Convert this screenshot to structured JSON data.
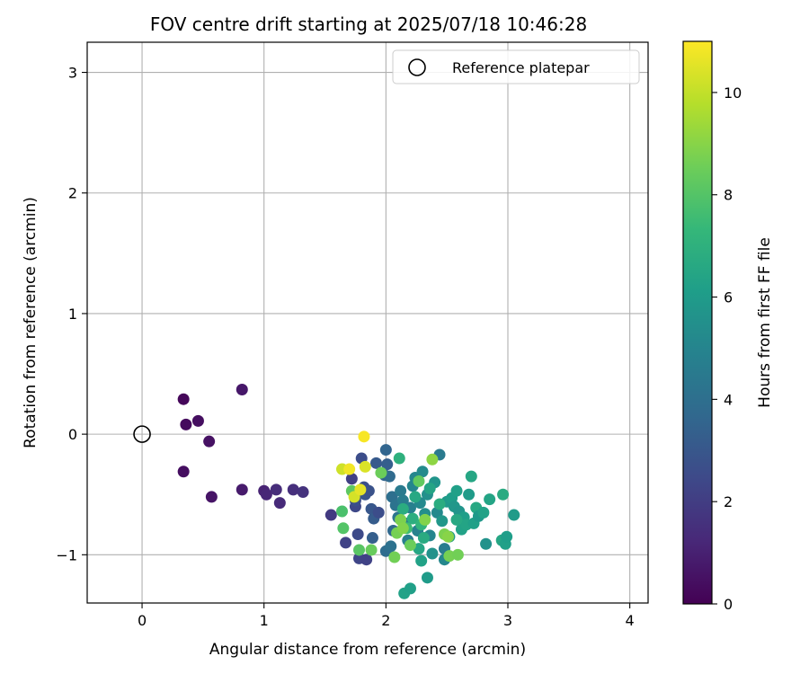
{
  "chart_data": {
    "type": "scatter",
    "title": "FOV centre drift starting at 2025/07/18 10:46:28",
    "xlabel": "Angular distance from reference (arcmin)",
    "ylabel": "Rotation from reference (arcmin)",
    "xlim": [
      -0.45,
      4.15
    ],
    "ylim": [
      -1.4,
      3.25
    ],
    "x_ticks": [
      0,
      1,
      2,
      3,
      4
    ],
    "y_ticks": [
      -1,
      0,
      1,
      2,
      3
    ],
    "x_tick_labels": [
      "0",
      "1",
      "2",
      "3",
      "4"
    ],
    "y_tick_labels": [
      "−1",
      "0",
      "1",
      "2",
      "3"
    ],
    "grid": true,
    "legend": {
      "placement": "top-right",
      "entries": [
        {
          "label": "Reference platepar",
          "marker": "open-circle"
        }
      ]
    },
    "reference_point": {
      "x": 0,
      "y": 0
    },
    "colorbar": {
      "label": "Hours from first FF file",
      "colormap": "viridis",
      "range": [
        0,
        11
      ],
      "ticks": [
        0,
        2,
        4,
        6,
        8,
        10
      ],
      "tick_labels": [
        "0",
        "2",
        "4",
        "6",
        "8",
        "10"
      ]
    },
    "points": [
      {
        "x": 0.34,
        "y": 0.29,
        "c": 0.2
      },
      {
        "x": 0.36,
        "y": 0.08,
        "c": 0.3
      },
      {
        "x": 0.46,
        "y": 0.11,
        "c": 0.4
      },
      {
        "x": 0.55,
        "y": -0.06,
        "c": 0.5
      },
      {
        "x": 0.34,
        "y": -0.31,
        "c": 0.4
      },
      {
        "x": 0.57,
        "y": -0.52,
        "c": 0.6
      },
      {
        "x": 0.82,
        "y": 0.37,
        "c": 0.7
      },
      {
        "x": 0.82,
        "y": -0.46,
        "c": 0.8
      },
      {
        "x": 1.0,
        "y": -0.47,
        "c": 1.1
      },
      {
        "x": 1.02,
        "y": -0.5,
        "c": 1.2
      },
      {
        "x": 1.1,
        "y": -0.46,
        "c": 1.4
      },
      {
        "x": 1.13,
        "y": -0.57,
        "c": 1.3
      },
      {
        "x": 1.24,
        "y": -0.46,
        "c": 1.5
      },
      {
        "x": 1.32,
        "y": -0.48,
        "c": 1.6
      },
      {
        "x": 1.55,
        "y": -0.67,
        "c": 1.9
      },
      {
        "x": 1.67,
        "y": -0.9,
        "c": 2.2
      },
      {
        "x": 1.72,
        "y": -0.37,
        "c": 2.1
      },
      {
        "x": 1.75,
        "y": -0.6,
        "c": 2.4
      },
      {
        "x": 1.77,
        "y": -0.83,
        "c": 2.5
      },
      {
        "x": 1.78,
        "y": -1.03,
        "c": 2.3
      },
      {
        "x": 1.8,
        "y": -0.2,
        "c": 2.6
      },
      {
        "x": 1.82,
        "y": -0.44,
        "c": 2.7
      },
      {
        "x": 1.83,
        "y": -0.5,
        "c": 2.9
      },
      {
        "x": 1.84,
        "y": -1.04,
        "c": 2.2
      },
      {
        "x": 1.86,
        "y": -0.47,
        "c": 2.8
      },
      {
        "x": 1.88,
        "y": -0.62,
        "c": 3.0
      },
      {
        "x": 1.9,
        "y": -0.7,
        "c": 3.2
      },
      {
        "x": 1.92,
        "y": -0.24,
        "c": 3.1
      },
      {
        "x": 1.94,
        "y": -0.65,
        "c": 2.6
      },
      {
        "x": 1.89,
        "y": -0.86,
        "c": 3.3
      },
      {
        "x": 1.75,
        "y": -0.55,
        "c": 2.7
      },
      {
        "x": 1.99,
        "y": -0.34,
        "c": 3.5
      },
      {
        "x": 2.0,
        "y": -0.13,
        "c": 3.6
      },
      {
        "x": 2.01,
        "y": -0.25,
        "c": 3.3
      },
      {
        "x": 2.03,
        "y": -0.35,
        "c": 3.8
      },
      {
        "x": 2.05,
        "y": -0.52,
        "c": 4.0
      },
      {
        "x": 2.06,
        "y": -0.8,
        "c": 3.7
      },
      {
        "x": 2.0,
        "y": -0.97,
        "c": 3.9
      },
      {
        "x": 2.04,
        "y": -0.93,
        "c": 4.1
      },
      {
        "x": 2.08,
        "y": -0.59,
        "c": 4.2
      },
      {
        "x": 2.1,
        "y": -0.69,
        "c": 4.3
      },
      {
        "x": 2.12,
        "y": -0.47,
        "c": 4.5
      },
      {
        "x": 2.14,
        "y": -0.55,
        "c": 4.6
      },
      {
        "x": 2.16,
        "y": -0.74,
        "c": 4.4
      },
      {
        "x": 2.18,
        "y": -0.88,
        "c": 4.7
      },
      {
        "x": 2.2,
        "y": -0.61,
        "c": 4.8
      },
      {
        "x": 2.22,
        "y": -0.43,
        "c": 5.0
      },
      {
        "x": 2.24,
        "y": -0.36,
        "c": 5.1
      },
      {
        "x": 2.26,
        "y": -0.8,
        "c": 4.9
      },
      {
        "x": 2.28,
        "y": -0.57,
        "c": 5.2
      },
      {
        "x": 2.3,
        "y": -0.31,
        "c": 5.3
      },
      {
        "x": 2.32,
        "y": -0.66,
        "c": 5.4
      },
      {
        "x": 2.34,
        "y": -0.5,
        "c": 5.5
      },
      {
        "x": 2.36,
        "y": -0.84,
        "c": 5.0
      },
      {
        "x": 2.38,
        "y": -0.99,
        "c": 5.6
      },
      {
        "x": 2.4,
        "y": -0.4,
        "c": 5.7
      },
      {
        "x": 2.42,
        "y": -0.65,
        "c": 5.2
      },
      {
        "x": 2.44,
        "y": -0.17,
        "c": 4.5
      },
      {
        "x": 2.46,
        "y": -0.72,
        "c": 5.8
      },
      {
        "x": 2.48,
        "y": -0.95,
        "c": 4.6
      },
      {
        "x": 2.48,
        "y": -1.04,
        "c": 5.1
      },
      {
        "x": 2.5,
        "y": -0.56,
        "c": 5.9
      },
      {
        "x": 2.52,
        "y": -0.85,
        "c": 6.0
      },
      {
        "x": 2.54,
        "y": -0.53,
        "c": 6.1
      },
      {
        "x": 2.56,
        "y": -0.6,
        "c": 5.8
      },
      {
        "x": 2.58,
        "y": -0.47,
        "c": 6.2
      },
      {
        "x": 2.6,
        "y": -0.64,
        "c": 5.7
      },
      {
        "x": 2.62,
        "y": -0.79,
        "c": 6.3
      },
      {
        "x": 2.64,
        "y": -0.69,
        "c": 6.1
      },
      {
        "x": 2.66,
        "y": -0.75,
        "c": 6.4
      },
      {
        "x": 2.68,
        "y": -0.5,
        "c": 6.0
      },
      {
        "x": 2.7,
        "y": -0.35,
        "c": 6.5
      },
      {
        "x": 2.72,
        "y": -0.74,
        "c": 6.2
      },
      {
        "x": 2.74,
        "y": -0.61,
        "c": 6.6
      },
      {
        "x": 2.76,
        "y": -0.68,
        "c": 5.9
      },
      {
        "x": 2.8,
        "y": -0.65,
        "c": 6.3
      },
      {
        "x": 2.82,
        "y": -0.91,
        "c": 5.6
      },
      {
        "x": 2.85,
        "y": -0.54,
        "c": 6.4
      },
      {
        "x": 2.95,
        "y": -0.88,
        "c": 6.5
      },
      {
        "x": 2.96,
        "y": -0.5,
        "c": 6.7
      },
      {
        "x": 2.98,
        "y": -0.91,
        "c": 6.2
      },
      {
        "x": 2.99,
        "y": -0.85,
        "c": 6.1
      },
      {
        "x": 3.05,
        "y": -0.67,
        "c": 6.0
      },
      {
        "x": 2.29,
        "y": -1.05,
        "c": 6.3
      },
      {
        "x": 2.34,
        "y": -1.19,
        "c": 6.0
      },
      {
        "x": 2.15,
        "y": -1.32,
        "c": 6.3
      },
      {
        "x": 2.2,
        "y": -1.28,
        "c": 6.2
      },
      {
        "x": 2.27,
        "y": -0.95,
        "c": 6.5
      },
      {
        "x": 2.31,
        "y": -0.86,
        "c": 6.7
      },
      {
        "x": 2.22,
        "y": -0.7,
        "c": 6.9
      },
      {
        "x": 2.24,
        "y": -0.52,
        "c": 6.6
      },
      {
        "x": 2.14,
        "y": -0.62,
        "c": 6.8
      },
      {
        "x": 2.11,
        "y": -0.2,
        "c": 7.0
      },
      {
        "x": 2.36,
        "y": -0.45,
        "c": 6.4
      },
      {
        "x": 2.58,
        "y": -0.71,
        "c": 6.6
      },
      {
        "x": 2.44,
        "y": -0.58,
        "c": 6.8
      },
      {
        "x": 2.29,
        "y": -0.75,
        "c": 7.2
      },
      {
        "x": 2.17,
        "y": -0.78,
        "c": 7.5
      },
      {
        "x": 1.64,
        "y": -0.64,
        "c": 7.8
      },
      {
        "x": 1.65,
        "y": -0.78,
        "c": 8.0
      },
      {
        "x": 1.72,
        "y": -0.47,
        "c": 8.2
      },
      {
        "x": 1.78,
        "y": -0.96,
        "c": 8.1
      },
      {
        "x": 1.88,
        "y": -0.96,
        "c": 8.4
      },
      {
        "x": 1.96,
        "y": -0.32,
        "c": 8.5
      },
      {
        "x": 2.07,
        "y": -1.02,
        "c": 8.6
      },
      {
        "x": 2.09,
        "y": -0.82,
        "c": 8.7
      },
      {
        "x": 2.12,
        "y": -0.71,
        "c": 8.8
      },
      {
        "x": 2.14,
        "y": -0.78,
        "c": 8.9
      },
      {
        "x": 2.2,
        "y": -0.92,
        "c": 8.5
      },
      {
        "x": 2.27,
        "y": -0.39,
        "c": 8.3
      },
      {
        "x": 2.32,
        "y": -0.71,
        "c": 8.9
      },
      {
        "x": 2.38,
        "y": -0.21,
        "c": 9.1
      },
      {
        "x": 2.48,
        "y": -0.83,
        "c": 8.8
      },
      {
        "x": 2.51,
        "y": -0.85,
        "c": 9.0
      },
      {
        "x": 2.52,
        "y": -1.01,
        "c": 8.7
      },
      {
        "x": 2.59,
        "y": -1.0,
        "c": 8.6
      },
      {
        "x": 1.74,
        "y": -0.52,
        "c": 10.3
      },
      {
        "x": 1.79,
        "y": -0.46,
        "c": 10.6
      },
      {
        "x": 1.64,
        "y": -0.29,
        "c": 10.2
      },
      {
        "x": 1.7,
        "y": -0.29,
        "c": 10.8
      },
      {
        "x": 1.83,
        "y": -0.27,
        "c": 10.4
      },
      {
        "x": 1.82,
        "y": -0.02,
        "c": 10.9
      }
    ]
  }
}
